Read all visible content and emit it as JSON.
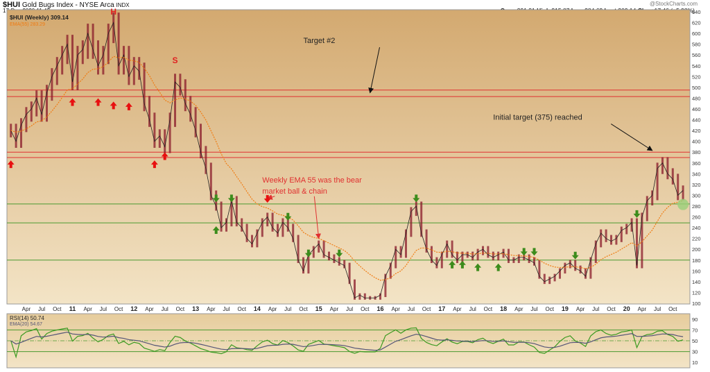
{
  "header": {
    "symbol": "$HUI",
    "name": "Gold Bugs Index - NYSE Arca",
    "exchange": "INDX",
    "datetime": "17-Dec-2020 11:48am",
    "source": "@StockCharts.com",
    "open_label": "Open",
    "open": "291.31",
    "high_label": "High",
    "high": "315.87",
    "low_label": "Low",
    "low": "284.62",
    "last_label": "Last",
    "last": "309.14",
    "chg_label": "Chg",
    "chg": "+17.46 (+5.98%)"
  },
  "chart_data": [
    {
      "type": "line",
      "title": "$HUI (Weekly) 309.14",
      "ema_label": "EMA(55) 283.29",
      "ylim": [
        100,
        640
      ],
      "yticks": [
        100,
        120,
        140,
        160,
        180,
        200,
        220,
        240,
        260,
        280,
        300,
        320,
        340,
        360,
        380,
        400,
        420,
        440,
        460,
        480,
        500,
        520,
        540,
        560,
        580,
        600,
        620,
        640
      ],
      "xticks": [
        [
          "2010-04",
          "Apr"
        ],
        [
          "2010-07",
          "Jul"
        ],
        [
          "2010-10",
          "Oct"
        ],
        [
          "2011-01",
          "11"
        ],
        [
          "2011-04",
          "Apr"
        ],
        [
          "2011-07",
          "Jul"
        ],
        [
          "2011-10",
          "Oct"
        ],
        [
          "2012-01",
          "12"
        ],
        [
          "2012-04",
          "Apr"
        ],
        [
          "2012-07",
          "Jul"
        ],
        [
          "2012-10",
          "Oct"
        ],
        [
          "2013-01",
          "13"
        ],
        [
          "2013-04",
          "Apr"
        ],
        [
          "2013-07",
          "Jul"
        ],
        [
          "2013-10",
          "Oct"
        ],
        [
          "2014-01",
          "14"
        ],
        [
          "2014-04",
          "Apr"
        ],
        [
          "2014-07",
          "Jul"
        ],
        [
          "2014-10",
          "Oct"
        ],
        [
          "2015-01",
          "15"
        ],
        [
          "2015-04",
          "Apr"
        ],
        [
          "2015-07",
          "Jul"
        ],
        [
          "2015-10",
          "Oct"
        ],
        [
          "2016-01",
          "16"
        ],
        [
          "2016-04",
          "Apr"
        ],
        [
          "2016-07",
          "Jul"
        ],
        [
          "2016-10",
          "Oct"
        ],
        [
          "2017-01",
          "17"
        ],
        [
          "2017-04",
          "Apr"
        ],
        [
          "2017-07",
          "Jul"
        ],
        [
          "2017-10",
          "Oct"
        ],
        [
          "2018-01",
          "18"
        ],
        [
          "2018-04",
          "Apr"
        ],
        [
          "2018-07",
          "Jul"
        ],
        [
          "2018-10",
          "Oct"
        ],
        [
          "2019-01",
          "19"
        ],
        [
          "2019-04",
          "Apr"
        ],
        [
          "2019-07",
          "Jul"
        ],
        [
          "2019-10",
          "Oct"
        ],
        [
          "2020-01",
          "20"
        ],
        [
          "2020-04",
          "Apr"
        ],
        [
          "2020-07",
          "Jul"
        ],
        [
          "2020-10",
          "Oct"
        ]
      ],
      "start": "2010-01",
      "close": [
        420,
        400,
        430,
        450,
        460,
        480,
        450,
        490,
        520,
        540,
        560,
        580,
        510,
        560,
        570,
        600,
        570,
        540,
        560,
        600,
        620,
        540,
        560,
        520,
        540,
        530,
        470,
        440,
        400,
        410,
        390,
        440,
        510,
        500,
        470,
        450,
        420,
        380,
        350,
        300,
        280,
        240,
        250,
        290,
        250,
        240,
        220,
        210,
        230,
        250,
        260,
        240,
        230,
        250,
        240,
        220,
        180,
        160,
        190,
        200,
        210,
        190,
        185,
        180,
        175,
        170,
        140,
        110,
        115,
        110,
        110,
        110,
        115,
        150,
        170,
        200,
        190,
        230,
        270,
        280,
        230,
        200,
        180,
        170,
        190,
        210,
        190,
        180,
        190,
        190,
        185,
        195,
        200,
        190,
        185,
        190,
        195,
        180,
        180,
        185,
        185,
        180,
        175,
        150,
        140,
        145,
        150,
        160,
        170,
        175,
        165,
        160,
        150,
        180,
        210,
        230,
        220,
        215,
        220,
        235,
        240,
        250,
        170,
        260,
        290,
        300,
        350,
        360,
        340,
        330,
        300,
        309
      ],
      "horizontal_lines": [
        {
          "value": 495,
          "color": "#e03030"
        },
        {
          "value": 483,
          "color": "#e03030"
        },
        {
          "value": 380,
          "color": "#e03030"
        },
        {
          "value": 370,
          "color": "#e03030"
        },
        {
          "value": 284,
          "color": "#4a9a30"
        },
        {
          "value": 249,
          "color": "#4a9a30"
        },
        {
          "value": 180,
          "color": "#4a9a30"
        }
      ],
      "labels": [
        {
          "text": "H",
          "date": "2011-09",
          "price": 635,
          "color": "#e02020"
        },
        {
          "text": "S",
          "date": "2012-09",
          "price": 545,
          "color": "#e02020"
        }
      ],
      "annotations": [
        {
          "text": "Target #2",
          "date": "2014-10",
          "price": 582,
          "color": "#222",
          "arrow_to": [
            "2015-11",
            "490"
          ]
        },
        {
          "text": "Initial target (375) reached",
          "date": "2017-11",
          "price": 440,
          "color": "#222",
          "arrow_to": [
            "2020-06",
            "383"
          ]
        },
        {
          "text": "Weekly EMA 55 was the bear",
          "text2": "market ball & chain",
          "date": "2014-02",
          "price": 324,
          "color": "#e03030",
          "arrow_to": [
            "2014-03",
            "294"
          ],
          "arrow2_to": [
            "2015-01",
            "220"
          ]
        }
      ],
      "red_up_arrows": [
        [
          "2010-01",
          357
        ],
        [
          "2011-01",
          472
        ],
        [
          "2011-06",
          472
        ],
        [
          "2011-09",
          466
        ],
        [
          "2011-12",
          464
        ],
        [
          "2012-05",
          357
        ],
        [
          "2012-07",
          372
        ]
      ],
      "green_down_arrows": [
        [
          "2013-05",
          295
        ],
        [
          "2013-08",
          295
        ],
        [
          "2014-07",
          261
        ],
        [
          "2014-11",
          193
        ],
        [
          "2015-05",
          193
        ],
        [
          "2016-08",
          295
        ],
        [
          "2018-05",
          196
        ],
        [
          "2018-07",
          196
        ],
        [
          "2019-03",
          189
        ],
        [
          "2020-03",
          266
        ]
      ],
      "green_up_arrows": [
        [
          "2013-05",
          235
        ],
        [
          "2017-03",
          171
        ],
        [
          "2017-05",
          171
        ],
        [
          "2017-08",
          166
        ],
        [
          "2017-12",
          166
        ]
      ],
      "red_down_arrows": [
        [
          "2014-03",
          294
        ]
      ],
      "colors": {
        "price": "#8a1a2a",
        "ema": "#f07a10",
        "bg_top": "#d3a970",
        "bg_bottom": "#f3e4c6"
      }
    },
    {
      "type": "line",
      "title": "RSI(14) 50.74",
      "ema_label": "EMA(20) 54.67",
      "ylim": [
        0,
        100
      ],
      "yticks": [
        10,
        30,
        50,
        70,
        90
      ],
      "bands": [
        30,
        50,
        70
      ],
      "colors": {
        "rsi": "#3a9a20",
        "ema": "#555577"
      }
    }
  ]
}
